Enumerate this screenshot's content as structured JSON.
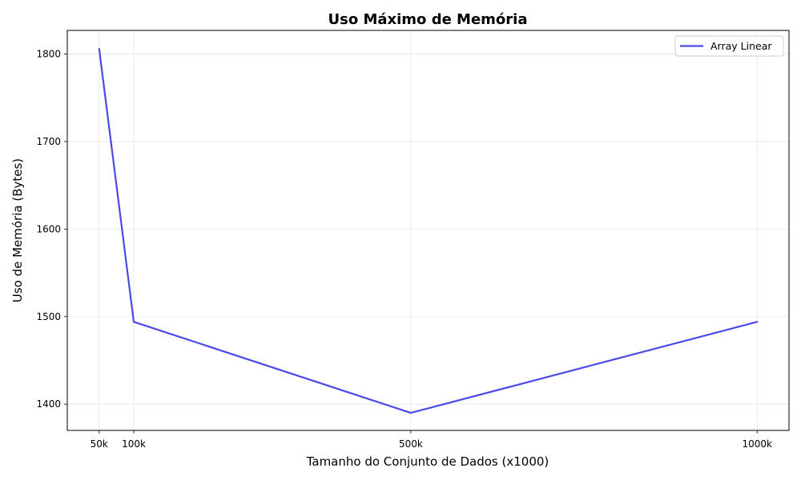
{
  "chart_data": {
    "type": "line",
    "title": "Uso Máximo de Memória",
    "xlabel": "Tamanho do Conjunto de Dados (x1000)",
    "ylabel": "Uso de Memória (Bytes)",
    "x": [
      50,
      100,
      500,
      1000
    ],
    "x_tick_values": [
      50,
      100,
      500,
      1000
    ],
    "x_tick_labels": [
      "50k",
      "100k",
      "500k",
      "1000k"
    ],
    "xlim": [
      4,
      1046
    ],
    "y_ticks": [
      1400,
      1500,
      1600,
      1700,
      1800
    ],
    "ylim": [
      1370,
      1827
    ],
    "grid": true,
    "legend_position": "top-right",
    "series": [
      {
        "name": "Array Linear",
        "color": "#4a4ae8",
        "values": [
          1806,
          1494,
          1390,
          1494
        ]
      }
    ]
  }
}
